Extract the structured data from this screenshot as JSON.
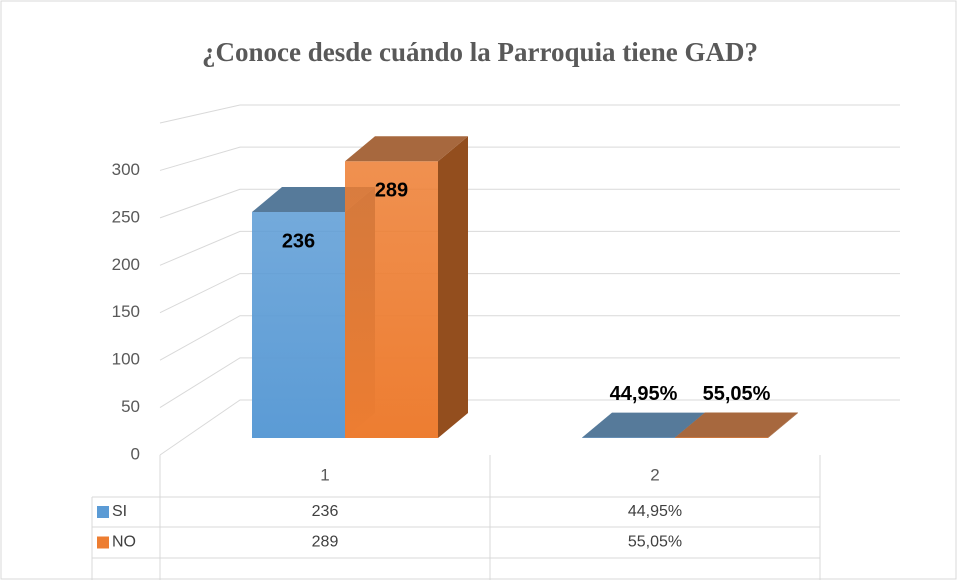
{
  "chart_data": {
    "type": "bar3d",
    "title": "¿Conoce desde cuándo la Parroquia tiene GAD?",
    "categories": [
      "1",
      "2"
    ],
    "series": [
      {
        "name": "SI",
        "color": "#5b9bd5",
        "values": [
          236,
          0.4495
        ],
        "value_labels": [
          "236",
          "44,95%"
        ]
      },
      {
        "name": "NO",
        "color": "#ed7d31",
        "values": [
          289,
          0.5505
        ],
        "value_labels": [
          "289",
          "55,05%"
        ]
      }
    ],
    "ylim": [
      0,
      350
    ],
    "yticks": [
      0,
      50,
      100,
      150,
      200,
      250,
      300
    ],
    "grid": true,
    "data_table": true
  }
}
